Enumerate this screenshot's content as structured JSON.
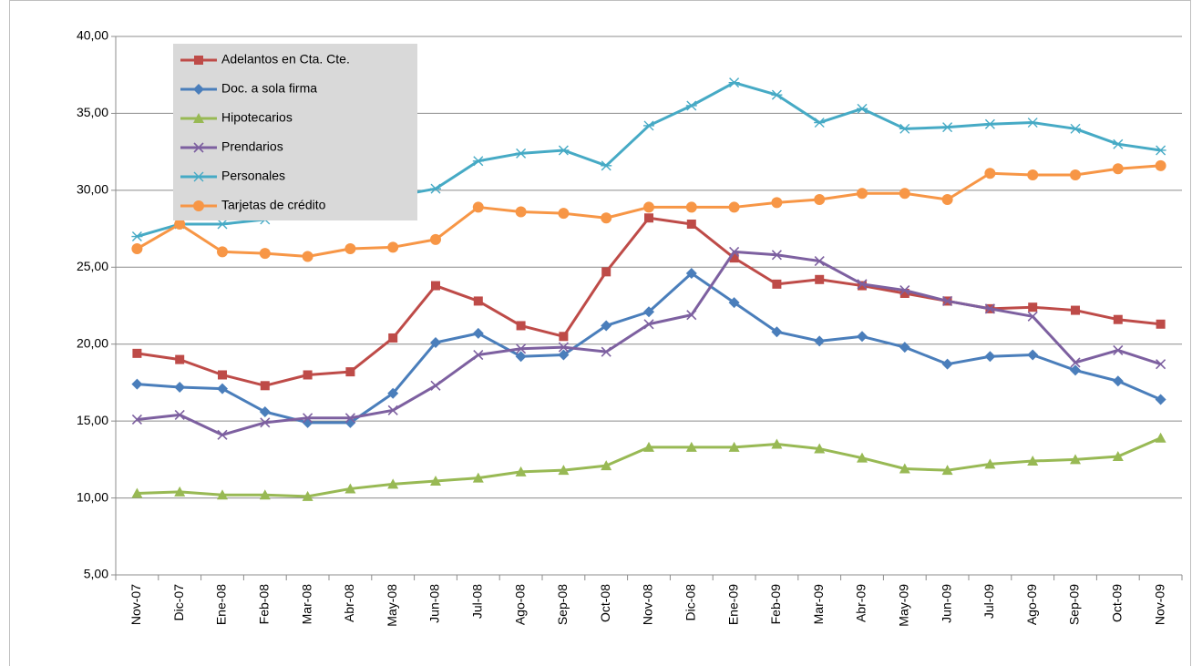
{
  "chart_data": {
    "type": "line",
    "categories": [
      "Nov-07",
      "Dic-07",
      "Ene-08",
      "Feb-08",
      "Mar-08",
      "Abr-08",
      "May-08",
      "Jun-08",
      "Jul-08",
      "Ago-08",
      "Sep-08",
      "Oct-08",
      "Nov-08",
      "Dic-08",
      "Ene-09",
      "Feb-09",
      "Mar-09",
      "Abr-09",
      "May-09",
      "Jun-09",
      "Jul-09",
      "Ago-09",
      "Sep-09",
      "Oct-09",
      "Nov-09"
    ],
    "ylim": [
      5,
      40
    ],
    "yticks": [
      {
        "value": 5,
        "label": "5,00"
      },
      {
        "value": 10,
        "label": "10,00"
      },
      {
        "value": 15,
        "label": "15,00"
      },
      {
        "value": 20,
        "label": "20,00"
      },
      {
        "value": 25,
        "label": "25,00"
      },
      {
        "value": 30,
        "label": "30,00"
      },
      {
        "value": 35,
        "label": "35,00"
      },
      {
        "value": 40,
        "label": "40,00"
      }
    ],
    "grid": true,
    "legend": "upper left",
    "series": [
      {
        "name": "Adelantos en Cta. Cte.",
        "color": "#be4b48",
        "marker": "square",
        "values": [
          19.4,
          19.0,
          18.0,
          17.3,
          18.0,
          18.2,
          20.4,
          23.8,
          22.8,
          21.2,
          20.5,
          24.7,
          28.2,
          27.8,
          25.6,
          23.9,
          24.2,
          23.8,
          23.3,
          22.8,
          22.3,
          22.4,
          22.2,
          21.6,
          21.3
        ]
      },
      {
        "name": "Doc. a sola firma",
        "color": "#4a7ebb",
        "marker": "diamond",
        "values": [
          17.4,
          17.2,
          17.1,
          15.6,
          14.9,
          14.9,
          16.8,
          20.1,
          20.7,
          19.2,
          19.3,
          21.2,
          22.1,
          24.6,
          22.7,
          20.8,
          20.2,
          20.5,
          19.8,
          18.7,
          19.2,
          19.3,
          18.3,
          17.6,
          16.4
        ]
      },
      {
        "name": "Hipotecarios",
        "color": "#98b954",
        "marker": "triangle",
        "values": [
          10.3,
          10.4,
          10.2,
          10.2,
          10.1,
          10.6,
          10.9,
          11.1,
          11.3,
          11.7,
          11.8,
          12.1,
          13.3,
          13.3,
          13.3,
          13.5,
          13.2,
          12.6,
          11.9,
          11.8,
          12.2,
          12.4,
          12.5,
          12.7,
          13.9
        ]
      },
      {
        "name": "Prendarios",
        "color": "#7d60a0",
        "marker": "x",
        "values": [
          15.1,
          15.4,
          14.1,
          14.9,
          15.2,
          15.2,
          15.7,
          17.3,
          19.3,
          19.7,
          19.8,
          19.5,
          21.3,
          21.9,
          26.0,
          25.8,
          25.4,
          23.9,
          23.5,
          22.8,
          22.3,
          21.8,
          18.8,
          19.6,
          18.7
        ]
      },
      {
        "name": "Personales",
        "color": "#46aac5",
        "marker": "star",
        "values": [
          27.0,
          27.8,
          27.8,
          28.1,
          28.8,
          29.3,
          29.6,
          30.1,
          31.9,
          32.4,
          32.6,
          31.6,
          34.2,
          35.5,
          37.0,
          36.2,
          34.4,
          35.3,
          34.0,
          34.1,
          34.3,
          34.4,
          34.0,
          33.0,
          32.6
        ]
      },
      {
        "name": "Tarjetas de crédito",
        "color": "#f79646",
        "marker": "circle",
        "values": [
          26.2,
          27.8,
          26.0,
          25.9,
          25.7,
          26.2,
          26.3,
          26.8,
          28.9,
          28.6,
          28.5,
          28.2,
          28.9,
          28.9,
          28.9,
          29.2,
          29.4,
          29.8,
          29.8,
          29.4,
          31.1,
          31.0,
          31.0,
          31.4,
          31.6
        ]
      }
    ]
  }
}
